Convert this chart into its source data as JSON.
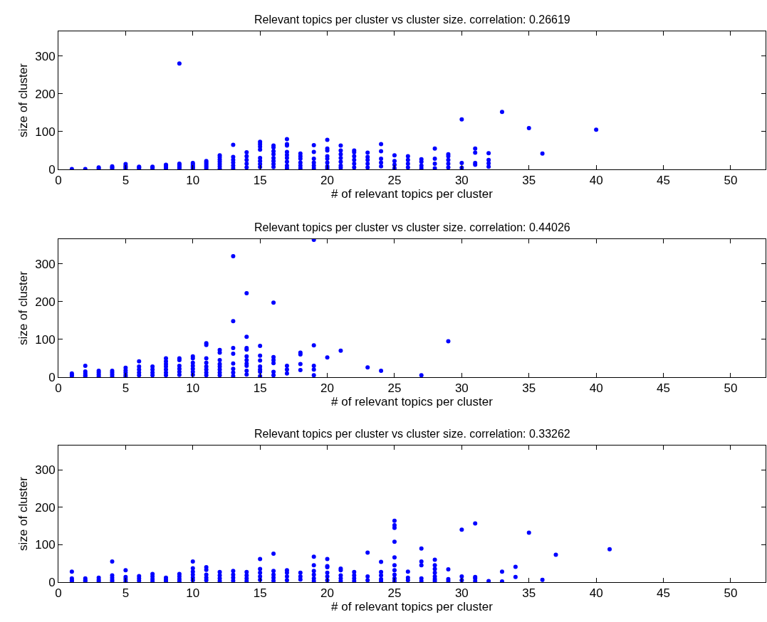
{
  "chart_data": [
    {
      "type": "scatter",
      "title": "Relevant topics per cluster vs cluster size. correlation: 0.26619",
      "xlabel": "# of relevant topics per cluster",
      "ylabel": "size of cluster",
      "xlim": [
        0,
        52.6
      ],
      "ylim": [
        0,
        365
      ],
      "xticks": [
        0,
        5,
        10,
        15,
        20,
        25,
        30,
        35,
        40,
        45,
        50
      ],
      "yticks": [
        0,
        100,
        200,
        300
      ],
      "marker": "circle",
      "series": [
        {
          "color": "#0000ff",
          "x": [
            1,
            2,
            3,
            3,
            4,
            4,
            4,
            5,
            5,
            5,
            5,
            6,
            6,
            6,
            7,
            7,
            7,
            8,
            8,
            8,
            8,
            8,
            9,
            9,
            9,
            9,
            9,
            9,
            10,
            10,
            10,
            10,
            10,
            11,
            11,
            11,
            11,
            11,
            11,
            12,
            12,
            12,
            12,
            12,
            12,
            12,
            13,
            13,
            13,
            13,
            13,
            13,
            14,
            14,
            14,
            14,
            14,
            15,
            15,
            15,
            15,
            15,
            15,
            15,
            15,
            16,
            16,
            16,
            16,
            16,
            16,
            16,
            16,
            17,
            17,
            17,
            17,
            17,
            17,
            17,
            17,
            17,
            18,
            18,
            18,
            18,
            18,
            18,
            19,
            19,
            19,
            19,
            19,
            19,
            20,
            20,
            20,
            20,
            20,
            20,
            20,
            20,
            21,
            21,
            21,
            21,
            21,
            21,
            21,
            22,
            22,
            22,
            22,
            22,
            22,
            23,
            23,
            23,
            23,
            23,
            24,
            24,
            24,
            24,
            24,
            25,
            25,
            25,
            25,
            26,
            26,
            26,
            26,
            27,
            27,
            27,
            27,
            28,
            28,
            28,
            28,
            29,
            29,
            29,
            29,
            29,
            30,
            30,
            30,
            31,
            31,
            31,
            31,
            32,
            32,
            32,
            32,
            33,
            35,
            36,
            40
          ],
          "values": [
            1,
            1,
            2,
            5,
            2,
            5,
            8,
            1,
            5,
            9,
            14,
            2,
            5,
            7,
            2,
            5,
            7,
            2,
            5,
            8,
            11,
            12,
            280,
            2,
            5,
            8,
            12,
            15,
            2,
            5,
            9,
            13,
            17,
            2,
            6,
            10,
            14,
            18,
            22,
            2,
            8,
            14,
            20,
            26,
            32,
            37,
            65,
            33,
            25,
            18,
            10,
            3,
            45,
            35,
            25,
            15,
            5,
            73,
            67,
            60,
            52,
            30,
            22,
            14,
            6,
            63,
            58,
            48,
            40,
            30,
            22,
            14,
            6,
            80,
            67,
            63,
            46,
            38,
            30,
            20,
            10,
            3,
            42,
            35,
            28,
            18,
            10,
            3,
            64,
            46,
            28,
            18,
            10,
            3,
            78,
            55,
            50,
            35,
            28,
            18,
            8,
            3,
            63,
            50,
            40,
            30,
            20,
            10,
            4,
            50,
            45,
            35,
            25,
            15,
            5,
            44,
            33,
            25,
            15,
            5,
            67,
            48,
            28,
            18,
            8,
            37,
            22,
            12,
            3,
            35,
            25,
            15,
            5,
            27,
            20,
            10,
            3,
            55,
            28,
            15,
            3,
            40,
            35,
            25,
            15,
            5,
            132,
            17,
            4,
            55,
            44,
            17,
            12,
            43,
            25,
            16,
            7,
            152,
            109,
            42,
            105
          ]
        }
      ]
    },
    {
      "type": "scatter",
      "title": "Relevant topics per cluster vs cluster size. correlation: 0.44026",
      "xlabel": "# of relevant topics per cluster",
      "ylabel": "size of cluster",
      "xlim": [
        0,
        52.6
      ],
      "ylim": [
        0,
        365
      ],
      "xticks": [
        0,
        5,
        10,
        15,
        20,
        25,
        30,
        35,
        40,
        45,
        50
      ],
      "yticks": [
        0,
        100,
        200,
        300
      ],
      "marker": "circle",
      "series": [
        {
          "color": "#0000ff",
          "x": [
            1,
            1,
            1,
            2,
            2,
            2,
            2,
            2,
            3,
            3,
            3,
            3,
            4,
            4,
            4,
            4,
            5,
            5,
            5,
            5,
            5,
            6,
            6,
            6,
            6,
            6,
            7,
            7,
            7,
            7,
            8,
            8,
            8,
            8,
            8,
            8,
            8,
            9,
            9,
            9,
            9,
            9,
            9,
            10,
            10,
            10,
            10,
            10,
            10,
            10,
            11,
            11,
            11,
            11,
            11,
            11,
            11,
            11,
            12,
            12,
            12,
            12,
            12,
            12,
            12,
            12,
            13,
            13,
            13,
            13,
            13,
            13,
            13,
            13,
            14,
            14,
            14,
            14,
            14,
            14,
            14,
            14,
            14,
            14,
            15,
            15,
            15,
            15,
            15,
            15,
            15,
            16,
            16,
            16,
            16,
            16,
            16,
            17,
            17,
            17,
            18,
            18,
            18,
            18,
            19,
            19,
            19,
            19,
            19,
            20,
            21,
            23,
            24,
            27,
            29
          ],
          "values": [
            10,
            6,
            3,
            30,
            15,
            10,
            5,
            2,
            17,
            12,
            7,
            2,
            17,
            12,
            7,
            2,
            25,
            18,
            12,
            6,
            2,
            42,
            28,
            20,
            12,
            5,
            28,
            20,
            12,
            5,
            50,
            42,
            35,
            28,
            20,
            12,
            5,
            50,
            45,
            30,
            22,
            14,
            6,
            55,
            50,
            38,
            30,
            22,
            14,
            6,
            90,
            85,
            50,
            38,
            28,
            20,
            12,
            5,
            72,
            65,
            45,
            35,
            28,
            20,
            12,
            5,
            320,
            148,
            77,
            62,
            36,
            22,
            12,
            3,
            222,
            107,
            77,
            73,
            55,
            45,
            36,
            30,
            17,
            7,
            83,
            57,
            44,
            28,
            20,
            14,
            3,
            197,
            53,
            45,
            37,
            14,
            5,
            30,
            20,
            10,
            65,
            60,
            35,
            19,
            363,
            84,
            30,
            20,
            5,
            52,
            70,
            26,
            17,
            5,
            95
          ]
        }
      ]
    },
    {
      "type": "scatter",
      "title": "Relevant topics per cluster vs cluster size. correlation: 0.33262",
      "xlabel": "# of relevant topics per cluster",
      "ylabel": "size of cluster",
      "xlim": [
        0,
        52.6
      ],
      "ylim": [
        0,
        365
      ],
      "xticks": [
        0,
        5,
        10,
        15,
        20,
        25,
        30,
        35,
        40,
        45,
        50
      ],
      "yticks": [
        0,
        100,
        200,
        300
      ],
      "marker": "circle",
      "series": [
        {
          "color": "#0000ff",
          "x": [
            1,
            1,
            1,
            1,
            2,
            2,
            2,
            3,
            3,
            3,
            4,
            4,
            4,
            4,
            4,
            5,
            5,
            5,
            5,
            6,
            6,
            6,
            7,
            7,
            7,
            7,
            8,
            8,
            8,
            9,
            9,
            9,
            9,
            10,
            10,
            10,
            10,
            10,
            10,
            11,
            11,
            11,
            11,
            11,
            12,
            12,
            12,
            12,
            13,
            13,
            13,
            13,
            14,
            14,
            14,
            14,
            15,
            15,
            15,
            15,
            15,
            16,
            16,
            16,
            16,
            16,
            17,
            17,
            17,
            17,
            18,
            18,
            18,
            19,
            19,
            19,
            19,
            19,
            19,
            20,
            20,
            20,
            20,
            20,
            20,
            21,
            21,
            21,
            21,
            21,
            22,
            22,
            22,
            22,
            23,
            23,
            23,
            24,
            24,
            24,
            24,
            24,
            25,
            25,
            25,
            25,
            25,
            25,
            25,
            25,
            25,
            25,
            26,
            26,
            26,
            27,
            27,
            27,
            27,
            27,
            28,
            28,
            28,
            28,
            28,
            28,
            28,
            29,
            29,
            29,
            30,
            30,
            30,
            31,
            31,
            31,
            31,
            32,
            33,
            33,
            34,
            34,
            35,
            36,
            37,
            41
          ],
          "values": [
            28,
            10,
            5,
            2,
            10,
            5,
            2,
            12,
            6,
            2,
            55,
            18,
            12,
            6,
            2,
            32,
            14,
            8,
            2,
            16,
            10,
            4,
            22,
            15,
            8,
            2,
            12,
            6,
            2,
            22,
            15,
            8,
            2,
            55,
            37,
            28,
            20,
            12,
            5,
            40,
            33,
            20,
            12,
            5,
            27,
            18,
            10,
            3,
            30,
            20,
            12,
            4,
            27,
            18,
            10,
            3,
            62,
            35,
            25,
            15,
            6,
            76,
            30,
            20,
            12,
            4,
            32,
            25,
            15,
            5,
            25,
            15,
            7,
            68,
            45,
            30,
            20,
            10,
            3,
            62,
            43,
            40,
            25,
            15,
            5,
            36,
            32,
            18,
            10,
            3,
            27,
            18,
            10,
            3,
            79,
            15,
            5,
            54,
            27,
            18,
            8,
            2,
            164,
            152,
            145,
            108,
            66,
            45,
            32,
            20,
            10,
            3,
            28,
            12,
            5,
            90,
            55,
            45,
            10,
            3,
            60,
            45,
            35,
            25,
            15,
            8,
            3,
            34,
            8,
            3,
            140,
            15,
            5,
            157,
            14,
            10,
            3,
            3,
            28,
            2,
            41,
            14,
            132,
            6,
            73,
            88
          ]
        }
      ]
    }
  ]
}
